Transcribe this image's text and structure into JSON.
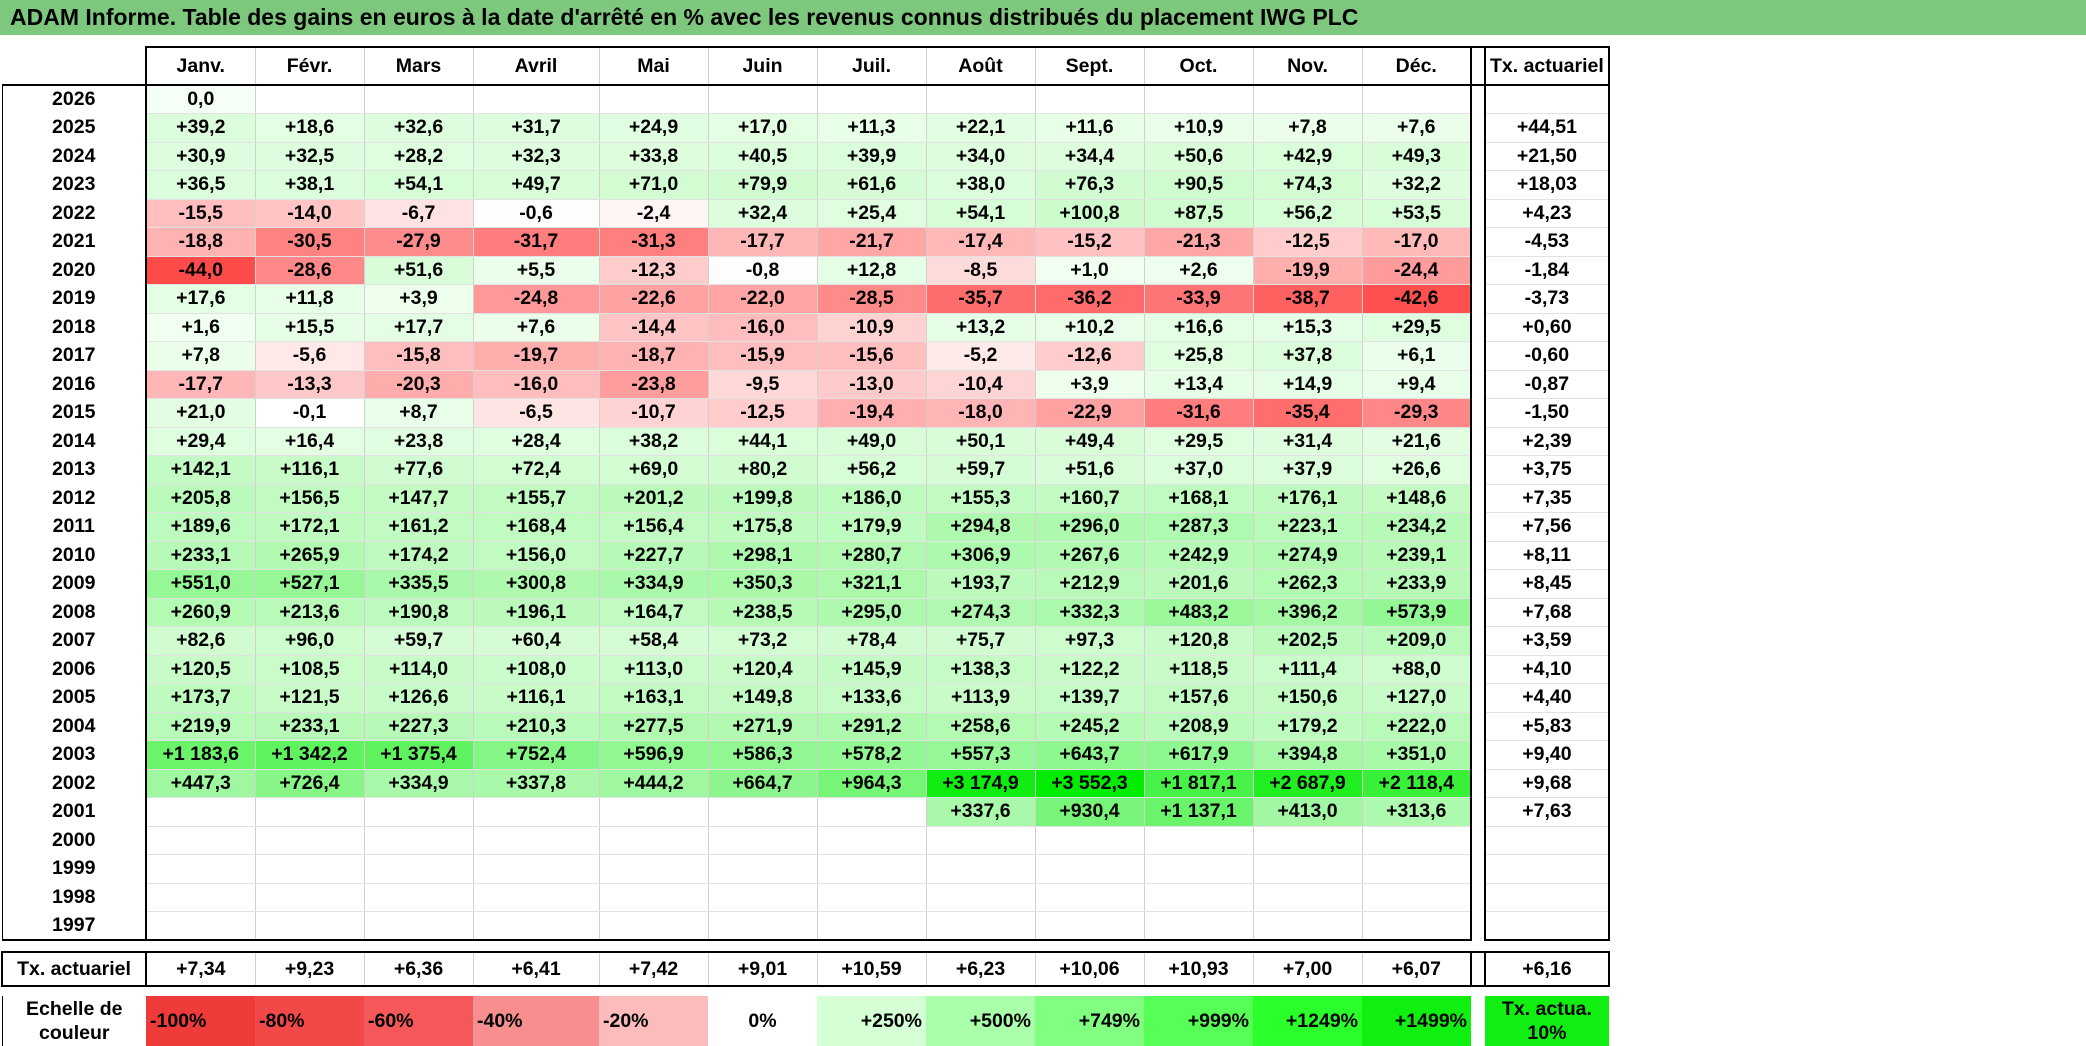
{
  "title": "ADAM Informe. Table des gains en euros à la date d'arrêté en % avec les revenus connus distribués du placement IWG PLC",
  "months": [
    "Janv.",
    "Févr.",
    "Mars",
    "Avril",
    "Mai",
    "Juin",
    "Juil.",
    "Août",
    "Sept.",
    "Oct.",
    "Nov.",
    "Déc."
  ],
  "annual_header": "Tx. actuariel",
  "rows": [
    {
      "year": "2026",
      "values": [
        "0,0",
        "",
        "",
        "",
        "",
        "",
        "",
        "",
        "",
        "",
        "",
        ""
      ],
      "annual": ""
    },
    {
      "year": "2025",
      "values": [
        "+39,2",
        "+18,6",
        "+32,6",
        "+31,7",
        "+24,9",
        "+17,0",
        "+11,3",
        "+22,1",
        "+11,6",
        "+10,9",
        "+7,8",
        "+7,6"
      ],
      "annual": "+44,51"
    },
    {
      "year": "2024",
      "values": [
        "+30,9",
        "+32,5",
        "+28,2",
        "+32,3",
        "+33,8",
        "+40,5",
        "+39,9",
        "+34,0",
        "+34,4",
        "+50,6",
        "+42,9",
        "+49,3"
      ],
      "annual": "+21,50"
    },
    {
      "year": "2023",
      "values": [
        "+36,5",
        "+38,1",
        "+54,1",
        "+49,7",
        "+71,0",
        "+79,9",
        "+61,6",
        "+38,0",
        "+76,3",
        "+90,5",
        "+74,3",
        "+32,2"
      ],
      "annual": "+18,03"
    },
    {
      "year": "2022",
      "values": [
        "-15,5",
        "-14,0",
        "-6,7",
        "-0,6",
        "-2,4",
        "+32,4",
        "+25,4",
        "+54,1",
        "+100,8",
        "+87,5",
        "+56,2",
        "+53,5"
      ],
      "annual": "+4,23"
    },
    {
      "year": "2021",
      "values": [
        "-18,8",
        "-30,5",
        "-27,9",
        "-31,7",
        "-31,3",
        "-17,7",
        "-21,7",
        "-17,4",
        "-15,2",
        "-21,3",
        "-12,5",
        "-17,0"
      ],
      "annual": "-4,53"
    },
    {
      "year": "2020",
      "values": [
        "-44,0",
        "-28,6",
        "+51,6",
        "+5,5",
        "-12,3",
        "-0,8",
        "+12,8",
        "-8,5",
        "+1,0",
        "+2,6",
        "-19,9",
        "-24,4"
      ],
      "annual": "-1,84"
    },
    {
      "year": "2019",
      "values": [
        "+17,6",
        "+11,8",
        "+3,9",
        "-24,8",
        "-22,6",
        "-22,0",
        "-28,5",
        "-35,7",
        "-36,2",
        "-33,9",
        "-38,7",
        "-42,6"
      ],
      "annual": "-3,73"
    },
    {
      "year": "2018",
      "values": [
        "+1,6",
        "+15,5",
        "+17,7",
        "+7,6",
        "-14,4",
        "-16,0",
        "-10,9",
        "+13,2",
        "+10,2",
        "+16,6",
        "+15,3",
        "+29,5"
      ],
      "annual": "+0,60"
    },
    {
      "year": "2017",
      "values": [
        "+7,8",
        "-5,6",
        "-15,8",
        "-19,7",
        "-18,7",
        "-15,9",
        "-15,6",
        "-5,2",
        "-12,6",
        "+25,8",
        "+37,8",
        "+6,1"
      ],
      "annual": "-0,60"
    },
    {
      "year": "2016",
      "values": [
        "-17,7",
        "-13,3",
        "-20,3",
        "-16,0",
        "-23,8",
        "-9,5",
        "-13,0",
        "-10,4",
        "+3,9",
        "+13,4",
        "+14,9",
        "+9,4"
      ],
      "annual": "-0,87"
    },
    {
      "year": "2015",
      "values": [
        "+21,0",
        "-0,1",
        "+8,7",
        "-6,5",
        "-10,7",
        "-12,5",
        "-19,4",
        "-18,0",
        "-22,9",
        "-31,6",
        "-35,4",
        "-29,3"
      ],
      "annual": "-1,50"
    },
    {
      "year": "2014",
      "values": [
        "+29,4",
        "+16,4",
        "+23,8",
        "+28,4",
        "+38,2",
        "+44,1",
        "+49,0",
        "+50,1",
        "+49,4",
        "+29,5",
        "+31,4",
        "+21,6"
      ],
      "annual": "+2,39"
    },
    {
      "year": "2013",
      "values": [
        "+142,1",
        "+116,1",
        "+77,6",
        "+72,4",
        "+69,0",
        "+80,2",
        "+56,2",
        "+59,7",
        "+51,6",
        "+37,0",
        "+37,9",
        "+26,6"
      ],
      "annual": "+3,75"
    },
    {
      "year": "2012",
      "values": [
        "+205,8",
        "+156,5",
        "+147,7",
        "+155,7",
        "+201,2",
        "+199,8",
        "+186,0",
        "+155,3",
        "+160,7",
        "+168,1",
        "+176,1",
        "+148,6"
      ],
      "annual": "+7,35"
    },
    {
      "year": "2011",
      "values": [
        "+189,6",
        "+172,1",
        "+161,2",
        "+168,4",
        "+156,4",
        "+175,8",
        "+179,9",
        "+294,8",
        "+296,0",
        "+287,3",
        "+223,1",
        "+234,2"
      ],
      "annual": "+7,56"
    },
    {
      "year": "2010",
      "values": [
        "+233,1",
        "+265,9",
        "+174,2",
        "+156,0",
        "+227,7",
        "+298,1",
        "+280,7",
        "+306,9",
        "+267,6",
        "+242,9",
        "+274,9",
        "+239,1"
      ],
      "annual": "+8,11"
    },
    {
      "year": "2009",
      "values": [
        "+551,0",
        "+527,1",
        "+335,5",
        "+300,8",
        "+334,9",
        "+350,3",
        "+321,1",
        "+193,7",
        "+212,9",
        "+201,6",
        "+262,3",
        "+233,9"
      ],
      "annual": "+8,45"
    },
    {
      "year": "2008",
      "values": [
        "+260,9",
        "+213,6",
        "+190,8",
        "+196,1",
        "+164,7",
        "+238,5",
        "+295,0",
        "+274,3",
        "+332,3",
        "+483,2",
        "+396,2",
        "+573,9"
      ],
      "annual": "+7,68"
    },
    {
      "year": "2007",
      "values": [
        "+82,6",
        "+96,0",
        "+59,7",
        "+60,4",
        "+58,4",
        "+73,2",
        "+78,4",
        "+75,7",
        "+97,3",
        "+120,8",
        "+202,5",
        "+209,0"
      ],
      "annual": "+3,59"
    },
    {
      "year": "2006",
      "values": [
        "+120,5",
        "+108,5",
        "+114,0",
        "+108,0",
        "+113,0",
        "+120,4",
        "+145,9",
        "+138,3",
        "+122,2",
        "+118,5",
        "+111,4",
        "+88,0"
      ],
      "annual": "+4,10"
    },
    {
      "year": "2005",
      "values": [
        "+173,7",
        "+121,5",
        "+126,6",
        "+116,1",
        "+163,1",
        "+149,8",
        "+133,6",
        "+113,9",
        "+139,7",
        "+157,6",
        "+150,6",
        "+127,0"
      ],
      "annual": "+4,40"
    },
    {
      "year": "2004",
      "values": [
        "+219,9",
        "+233,1",
        "+227,3",
        "+210,3",
        "+277,5",
        "+271,9",
        "+291,2",
        "+258,6",
        "+245,2",
        "+208,9",
        "+179,2",
        "+222,0"
      ],
      "annual": "+5,83"
    },
    {
      "year": "2003",
      "values": [
        "+1 183,6",
        "+1 342,2",
        "+1 375,4",
        "+752,4",
        "+596,9",
        "+586,3",
        "+578,2",
        "+557,3",
        "+643,7",
        "+617,9",
        "+394,8",
        "+351,0"
      ],
      "annual": "+9,40"
    },
    {
      "year": "2002",
      "values": [
        "+447,3",
        "+726,4",
        "+334,9",
        "+337,8",
        "+444,2",
        "+664,7",
        "+964,3",
        "+3 174,9",
        "+3 552,3",
        "+1 817,1",
        "+2 687,9",
        "+2 118,4"
      ],
      "annual": "+9,68"
    },
    {
      "year": "2001",
      "values": [
        "",
        "",
        "",
        "",
        "",
        "",
        "",
        "+337,6",
        "+930,4",
        "+1 137,1",
        "+413,0",
        "+313,6"
      ],
      "annual": "+7,63"
    },
    {
      "year": "2000",
      "values": [
        "",
        "",
        "",
        "",
        "",
        "",
        "",
        "",
        "",
        "",
        "",
        ""
      ],
      "annual": ""
    },
    {
      "year": "1999",
      "values": [
        "",
        "",
        "",
        "",
        "",
        "",
        "",
        "",
        "",
        "",
        "",
        ""
      ],
      "annual": ""
    },
    {
      "year": "1998",
      "values": [
        "",
        "",
        "",
        "",
        "",
        "",
        "",
        "",
        "",
        "",
        "",
        ""
      ],
      "annual": ""
    },
    {
      "year": "1997",
      "values": [
        "",
        "",
        "",
        "",
        "",
        "",
        "",
        "",
        "",
        "",
        "",
        ""
      ],
      "annual": ""
    }
  ],
  "average_row": {
    "label": "Tx. actuariel",
    "values": [
      "+7,34",
      "+9,23",
      "+6,36",
      "+6,41",
      "+7,42",
      "+9,01",
      "+10,59",
      "+6,23",
      "+10,06",
      "+10,93",
      "+7,00",
      "+6,07"
    ],
    "annual": "+6,16"
  },
  "scale": {
    "label": "Echelle de couleur",
    "items": [
      {
        "text": "-100%",
        "color": "#ef3a3a"
      },
      {
        "text": "-80%",
        "color": "#f24848"
      },
      {
        "text": "-60%",
        "color": "#f55858"
      },
      {
        "text": "-40%",
        "color": "#f98e8e"
      },
      {
        "text": "-20%",
        "color": "#fcbcbc"
      },
      {
        "text": "0%",
        "color": "#ffffff"
      },
      {
        "text": "+250%",
        "color": "#d5ffd5"
      },
      {
        "text": "+500%",
        "color": "#aaffaa"
      },
      {
        "text": "+749%",
        "color": "#80ff80"
      },
      {
        "text": "+999%",
        "color": "#55ff55"
      },
      {
        "text": "+1249%",
        "color": "#2bff2b"
      },
      {
        "text": "+1499%",
        "color": "#10f010"
      }
    ],
    "annual_label": "Tx. actua. 10%",
    "annual_color": "#11ee11"
  },
  "colors": {
    "title_bar": "#7ec87e",
    "negative_max": "#ef3a3a",
    "positive_max": "#00ee00"
  }
}
